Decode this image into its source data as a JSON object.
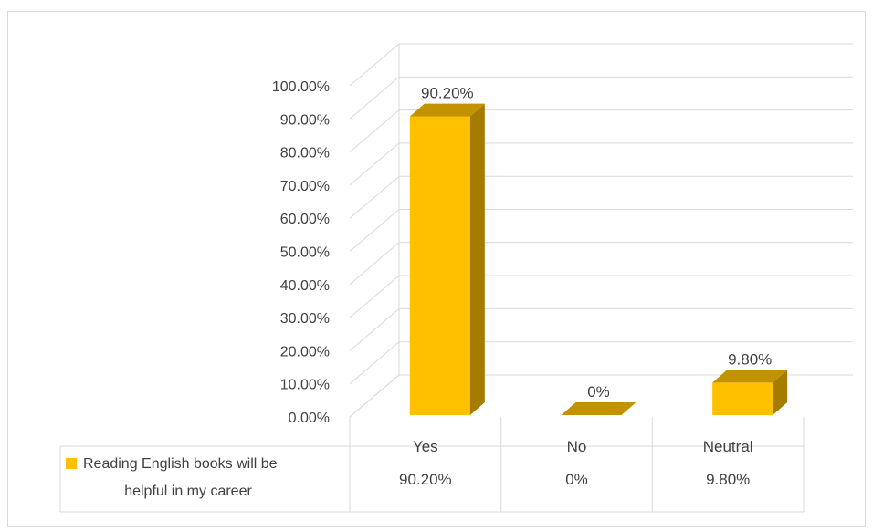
{
  "chart_data": {
    "type": "bar",
    "title": "",
    "xlabel": "",
    "ylabel": "",
    "categories": [
      "Yes",
      "No",
      "Neutral"
    ],
    "series": [
      {
        "name": "Reading English books will be helpful in my career",
        "name_lines": [
          "Reading English books will be",
          "helpful in my career"
        ],
        "values": [
          90.2,
          0,
          9.8
        ],
        "value_labels": [
          "90.20%",
          "0%",
          "9.80%"
        ],
        "color": "#FFC000"
      }
    ],
    "ylim": [
      0,
      100
    ],
    "y_ticks": [
      0,
      10,
      20,
      30,
      40,
      50,
      60,
      70,
      80,
      90,
      100
    ],
    "y_tick_labels": [
      "0.00%",
      "10.00%",
      "20.00%",
      "30.00%",
      "40.00%",
      "50.00%",
      "60.00%",
      "70.00%",
      "80.00%",
      "90.00%",
      "100.00%"
    ],
    "grid": true,
    "three_d": true,
    "data_table": true,
    "legend": "data-table"
  }
}
